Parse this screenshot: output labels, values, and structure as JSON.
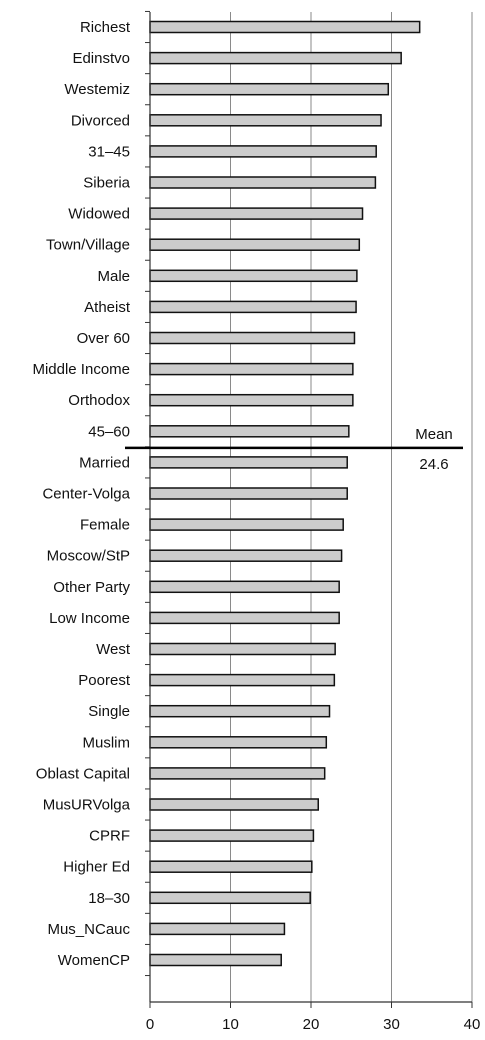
{
  "chart_data": {
    "type": "bar",
    "orientation": "horizontal",
    "categories": [
      "Richest",
      "Edinstvo",
      "Westemiz",
      "Divorced",
      "31–45",
      "Siberia",
      "Widowed",
      "Town/Village",
      "Male",
      "Atheist",
      "Over 60",
      "Middle Income",
      "Orthodox",
      "45–60",
      "Married",
      "Center-Volga",
      "Female",
      "Moscow/StP",
      "Other Party",
      "Low Income",
      "West",
      "Poorest",
      "Single",
      "Muslim",
      "Oblast Capital",
      "MusURVolga",
      "CPRF",
      "Higher Ed",
      "18–30",
      "Mus_NCauc",
      "WomenCP"
    ],
    "values": [
      33.5,
      31.2,
      29.6,
      28.7,
      28.1,
      28.0,
      26.4,
      26.0,
      25.7,
      25.6,
      25.4,
      25.2,
      25.2,
      24.7,
      24.5,
      24.5,
      24.0,
      23.8,
      23.5,
      23.5,
      23.0,
      22.9,
      22.3,
      21.9,
      21.7,
      20.9,
      20.3,
      20.1,
      19.9,
      16.7,
      16.3
    ],
    "xlim": [
      0,
      40
    ],
    "x_ticks": [
      "0",
      "10",
      "20",
      "30",
      "40"
    ],
    "grid": true,
    "bar_color": "#cccccc",
    "bar_edge_color": "#111111",
    "mean": {
      "value": 24.6,
      "label": "Mean",
      "value_label": "24.6"
    }
  }
}
